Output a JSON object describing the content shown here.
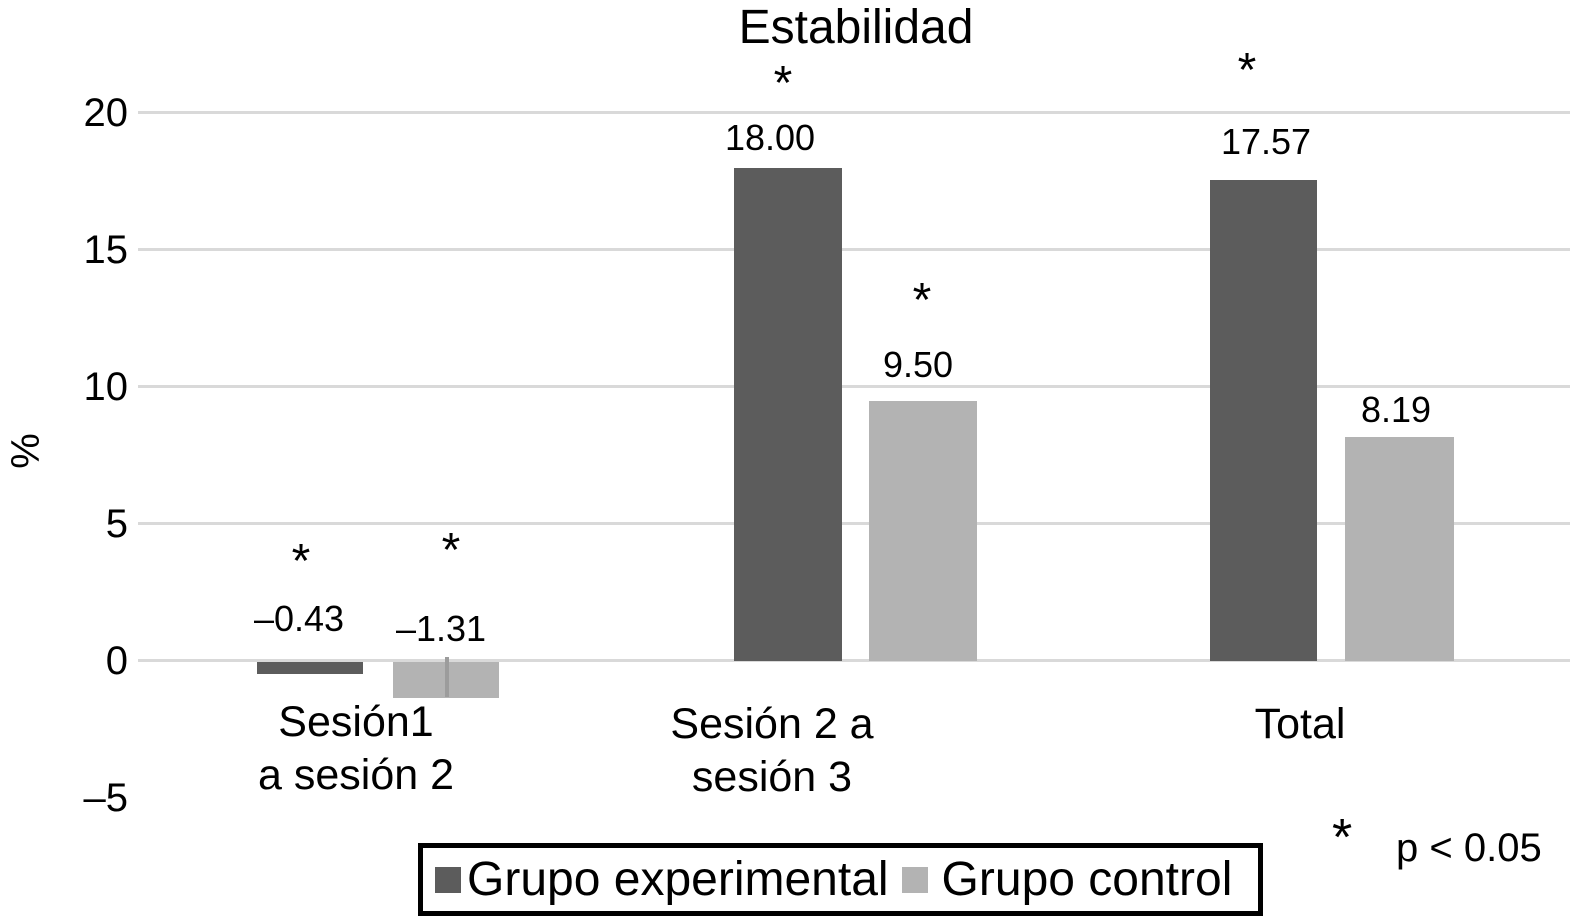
{
  "figure": {
    "title": "Estabilidad",
    "y_axis": {
      "label": "%",
      "tick_labels": [
        "20",
        "15",
        "10",
        "5",
        "0",
        "–5"
      ]
    },
    "note": {
      "marker": "*",
      "text": "p < 0.05"
    }
  },
  "legend": {
    "items": [
      {
        "label": "Grupo experimental",
        "color": "#5c5c5c"
      },
      {
        "label": "Grupo control",
        "color": "#b3b3b3"
      }
    ]
  },
  "chart_data": {
    "type": "bar",
    "title": "Estabilidad",
    "xlabel": "",
    "ylabel": "%",
    "ylim": [
      -5,
      20
    ],
    "yticks": [
      20,
      15,
      10,
      5,
      0,
      -5
    ],
    "grid": "horizontal",
    "legend_position": "bottom",
    "categories": [
      "Sesión1 a sesión 2",
      "Sesión 2 a sesión 3",
      "Total"
    ],
    "category_label_lines": [
      [
        "Sesión1",
        "a sesión 2"
      ],
      [
        "Sesión 2 a",
        "sesión 3"
      ],
      [
        "Total"
      ]
    ],
    "series": [
      {
        "name": "Grupo experimental",
        "color": "#5c5c5c",
        "values": [
          -0.43,
          18.0,
          17.57
        ],
        "value_labels": [
          "–0.43",
          "18.00",
          "17.57"
        ],
        "significant": [
          true,
          true,
          true
        ]
      },
      {
        "name": "Grupo control",
        "color": "#b3b3b3",
        "values": [
          -1.31,
          9.5,
          8.19
        ],
        "value_labels": [
          "–1.31",
          "9.50",
          "8.19"
        ],
        "significant": [
          true,
          true,
          false
        ]
      }
    ],
    "significance_note": "* p < 0.05"
  }
}
